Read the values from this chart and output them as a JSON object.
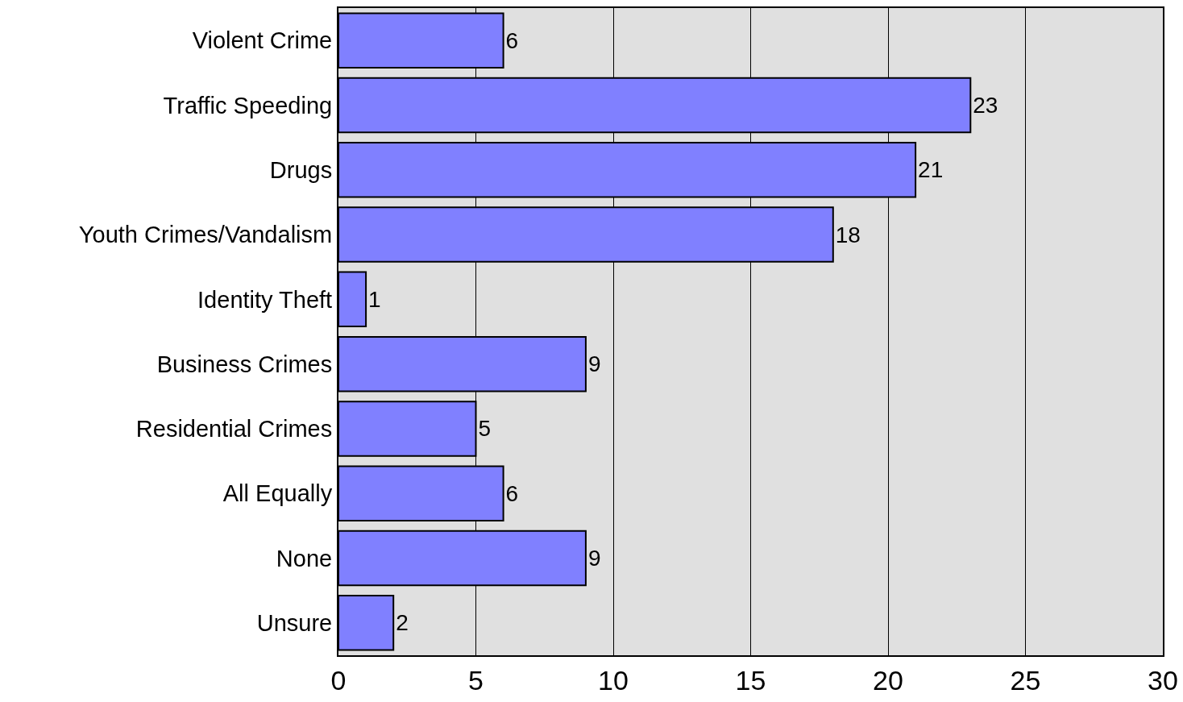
{
  "chart_data": {
    "type": "bar",
    "orientation": "horizontal",
    "categories": [
      "Violent Crime",
      "Traffic Speeding",
      "Drugs",
      "Youth Crimes/Vandalism",
      "Identity Theft",
      "Business Crimes",
      "Residential Crimes",
      "All Equally",
      "None",
      "Unsure"
    ],
    "values": [
      6,
      23,
      21,
      18,
      1,
      9,
      5,
      6,
      9,
      2
    ],
    "color": "#8080ff",
    "xlim": [
      0,
      30
    ],
    "xticks": [
      0,
      5,
      10,
      15,
      20,
      25,
      30
    ],
    "grid": "x",
    "legend": false,
    "data_labels": true
  }
}
